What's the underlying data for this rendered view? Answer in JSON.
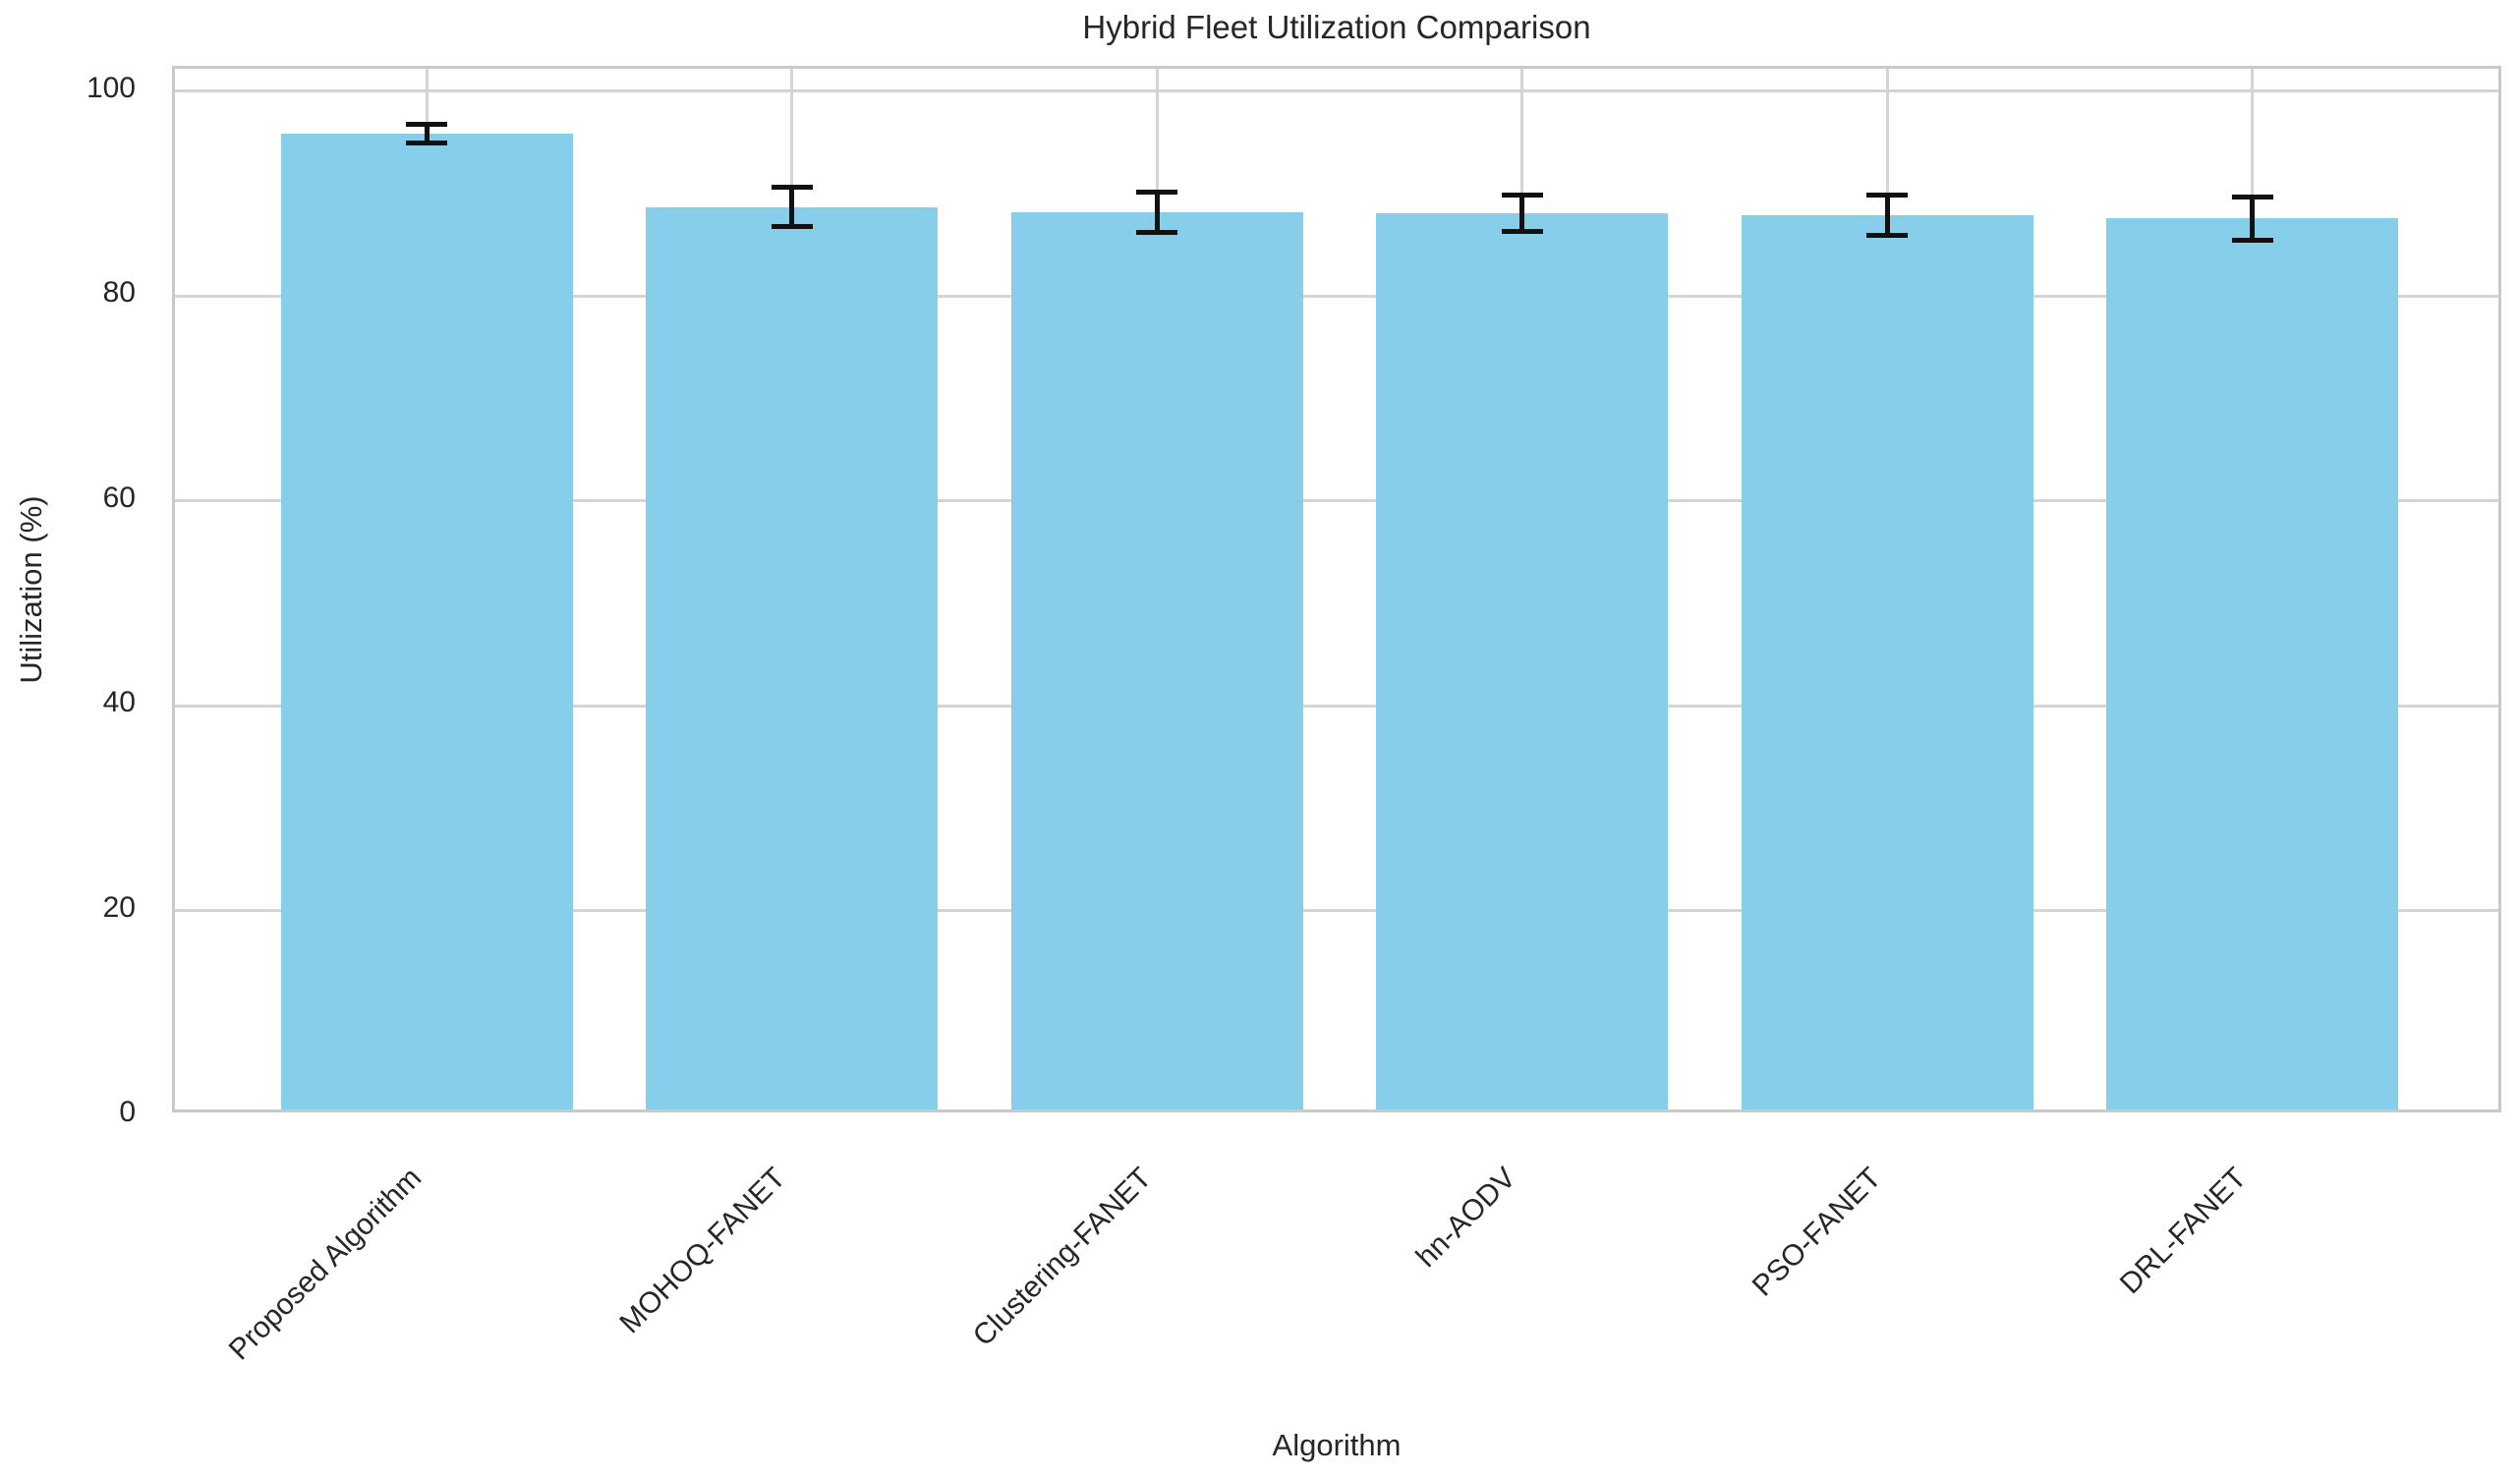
{
  "chart_data": {
    "type": "bar",
    "title": "Hybrid Fleet Utilization Comparison",
    "xlabel": "Algorithm",
    "ylabel": "Utilization (%)",
    "categories": [
      "Proposed Algorithm",
      "MOHOQ-FANET",
      "Clustering-FANET",
      "hn-AODV",
      "PSO-FANET",
      "DRL-FANET"
    ],
    "values": [
      95.9,
      88.7,
      88.2,
      88.1,
      87.9,
      87.6
    ],
    "errors": [
      0.9,
      1.9,
      2.0,
      1.8,
      2.0,
      2.1
    ],
    "yticks": [
      0,
      20,
      40,
      60,
      80,
      100
    ],
    "ylim": [
      0,
      102.2
    ],
    "xlim": [
      -0.69,
      5.69
    ],
    "bar_width": 0.8,
    "bar_color": "#87CEEB",
    "error_color": "#111111",
    "grid": true,
    "grid_color": "#d4d4d4",
    "spine_color": "#c9c9c9",
    "text_color": "#262626",
    "background": "#ffffff",
    "xtick_rotation": 45,
    "legend": null
  }
}
